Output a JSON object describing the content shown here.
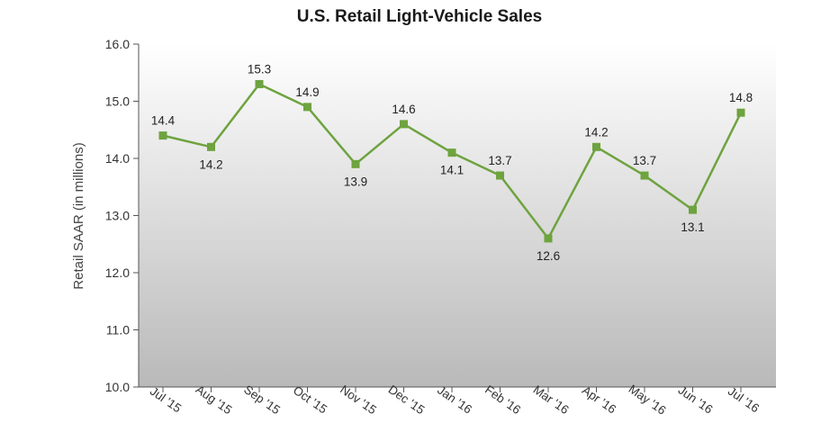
{
  "chart_data": {
    "type": "line",
    "title": "U.S. Retail Light-Vehicle Sales",
    "xlabel": "",
    "ylabel": "Retail SAAR (in millions)",
    "ylim": [
      10.0,
      16.0
    ],
    "yticks": [
      "10.0",
      "11.0",
      "12.0",
      "13.0",
      "14.0",
      "15.0",
      "16.0"
    ],
    "categories": [
      "Jul '15",
      "Aug '15",
      "Sep '15",
      "Oct '15",
      "Nov '15",
      "Dec '15",
      "Jan '16",
      "Feb '16",
      "Mar '16",
      "Apr '16",
      "May '16",
      "Jun '16",
      "Jul '16"
    ],
    "series": [
      {
        "values": [
          14.4,
          14.2,
          15.3,
          14.9,
          13.9,
          14.6,
          14.1,
          13.7,
          12.6,
          14.2,
          13.7,
          13.1,
          14.8
        ],
        "labels": [
          "14.4",
          "14.2",
          "15.3",
          "14.9",
          "13.9",
          "14.6",
          "14.1",
          "13.7",
          "12.6",
          "14.2",
          "13.7",
          "13.1",
          "14.8"
        ],
        "color": "#6ea33f",
        "marker": "square"
      }
    ],
    "label_positions": [
      "above",
      "below",
      "above",
      "above",
      "below",
      "above",
      "below",
      "above",
      "below",
      "above",
      "above",
      "below",
      "above"
    ],
    "grid": false,
    "legend": "none",
    "background": "gradient white-to-gray"
  }
}
